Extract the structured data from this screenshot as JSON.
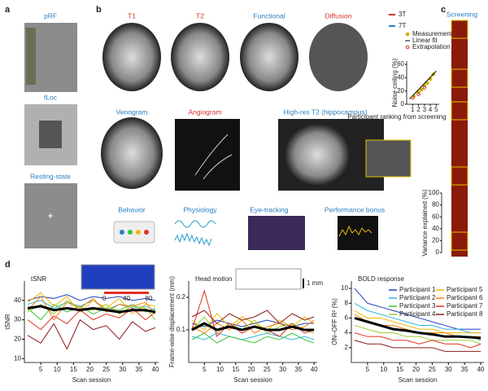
{
  "panel_labels": [
    "a",
    "b",
    "c",
    "d"
  ],
  "panel_a": {
    "titles": [
      "pRF",
      "fLoc",
      "Resting-state"
    ]
  },
  "panel_b": {
    "row1": [
      "T1",
      "T2",
      "Functional",
      "Diffusion"
    ],
    "row2": [
      "Venogram",
      "Angiogram",
      "High-res T2 (hippocampus)"
    ],
    "row3": [
      "Behavior",
      "Physiology",
      "Eye-tracking",
      "Performance bonus"
    ],
    "field_legend": [
      {
        "name": "3T",
        "color": "#d0342c"
      },
      {
        "name": "7T",
        "color": "#2a7fc0"
      }
    ]
  },
  "panel_c": {
    "title": "Screening"
  },
  "chart_data": [
    {
      "type": "scatter",
      "x_label": "Participant ranking from screening",
      "y_label": "Noise ceiling (%)",
      "xlim": [
        0,
        5.5
      ],
      "xticks": [
        1,
        2,
        3,
        4,
        5
      ],
      "ylim": [
        0,
        65
      ],
      "yticks": [
        0,
        20,
        40,
        60
      ],
      "series": [
        {
          "name": "Measurement",
          "color": "#c8b400",
          "style": "points",
          "x": [
            1.2,
            2,
            2.5,
            3,
            3.5,
            4,
            4.5
          ],
          "values": [
            12,
            18,
            22,
            28,
            32,
            38,
            45
          ]
        },
        {
          "name": "Linear fit",
          "color": "#000000",
          "style": "line",
          "x": [
            0.5,
            5
          ],
          "values": [
            8,
            50
          ]
        },
        {
          "name": "Extrapolation",
          "color": "#d0342c",
          "style": "open",
          "x": [
            1,
            2,
            3
          ],
          "values": [
            10,
            15,
            25
          ]
        }
      ]
    },
    {
      "type": "axis",
      "y_label": "Variance explained (%)",
      "ylim": [
        0,
        100
      ],
      "yticks": [
        0,
        20,
        40,
        60,
        80,
        100
      ]
    },
    {
      "type": "line",
      "title": "tSNR",
      "x_label": "Scan session",
      "y_label": "tSNR",
      "inset_ticks": [
        0,
        40,
        80
      ],
      "xlim": [
        0,
        41
      ],
      "xticks": [
        5,
        10,
        15,
        20,
        25,
        30,
        35,
        40
      ],
      "ylim": [
        8,
        50
      ],
      "yticks": [
        10,
        20,
        30,
        40
      ],
      "x": [
        1,
        5,
        9,
        13,
        17,
        21,
        25,
        29,
        33,
        37,
        40
      ],
      "series": [
        {
          "color": "#1f3fbf",
          "values": [
            40,
            42,
            41,
            43,
            40,
            42,
            41,
            42,
            40,
            41,
            40
          ]
        },
        {
          "color": "#2fb5e0",
          "values": [
            38,
            40,
            36,
            39,
            37,
            40,
            35,
            38,
            36,
            37,
            35
          ]
        },
        {
          "color": "#3cc43c",
          "values": [
            36,
            30,
            38,
            34,
            37,
            33,
            36,
            35,
            38,
            34,
            36
          ]
        },
        {
          "color": "#9acd32",
          "values": [
            34,
            38,
            33,
            40,
            36,
            35,
            38,
            33,
            37,
            36,
            30
          ]
        },
        {
          "color": "#f0b800",
          "values": [
            39,
            44,
            37,
            42,
            34,
            40,
            36,
            41,
            33,
            38,
            37
          ]
        },
        {
          "color": "#ff7f0e",
          "values": [
            35,
            42,
            30,
            39,
            36,
            41,
            34,
            38,
            37,
            39,
            33
          ]
        },
        {
          "color": "#e0301e",
          "values": [
            30,
            25,
            32,
            28,
            35,
            30,
            33,
            31,
            36,
            30,
            34
          ]
        },
        {
          "color": "#8b1a1a",
          "values": [
            22,
            18,
            28,
            15,
            30,
            25,
            27,
            20,
            29,
            24,
            26
          ]
        },
        {
          "color": "#000000",
          "width": 3,
          "values": [
            36,
            37,
            35,
            36,
            35,
            36,
            35,
            34,
            35,
            35,
            34
          ]
        }
      ]
    },
    {
      "type": "line",
      "title": "Head motion",
      "x_label": "Scan session",
      "y_label": "Frame-wise displacement (mm)",
      "inset_label": "1 mm",
      "xlim": [
        0,
        41
      ],
      "xticks": [
        5,
        10,
        15,
        20,
        25,
        30,
        35,
        40
      ],
      "ylim": [
        0,
        0.25
      ],
      "yticks": [
        0.1,
        0.2
      ],
      "x": [
        1,
        5,
        9,
        13,
        17,
        21,
        25,
        29,
        33,
        37,
        40
      ],
      "series": [
        {
          "color": "#1f3fbf",
          "values": [
            0.12,
            0.11,
            0.13,
            0.12,
            0.11,
            0.12,
            0.13,
            0.12,
            0.11,
            0.12,
            0.12
          ]
        },
        {
          "color": "#2fb5e0",
          "values": [
            0.08,
            0.07,
            0.09,
            0.08,
            0.07,
            0.08,
            0.09,
            0.08,
            0.07,
            0.08,
            0.07
          ]
        },
        {
          "color": "#3cc43c",
          "values": [
            0.07,
            0.09,
            0.06,
            0.08,
            0.07,
            0.06,
            0.08,
            0.07,
            0.09,
            0.07,
            0.06
          ]
        },
        {
          "color": "#9acd32",
          "values": [
            0.1,
            0.14,
            0.09,
            0.12,
            0.1,
            0.13,
            0.09,
            0.11,
            0.12,
            0.1,
            0.09
          ]
        },
        {
          "color": "#f0b800",
          "values": [
            0.13,
            0.1,
            0.15,
            0.11,
            0.14,
            0.12,
            0.1,
            0.13,
            0.11,
            0.14,
            0.12
          ]
        },
        {
          "color": "#ff7f0e",
          "values": [
            0.11,
            0.09,
            0.12,
            0.1,
            0.13,
            0.09,
            0.11,
            0.12,
            0.1,
            0.11,
            0.13
          ]
        },
        {
          "color": "#e0301e",
          "values": [
            0.1,
            0.22,
            0.08,
            0.12,
            0.09,
            0.11,
            0.1,
            0.08,
            0.12,
            0.09,
            0.1
          ]
        },
        {
          "color": "#8b1a1a",
          "values": [
            0.14,
            0.16,
            0.12,
            0.15,
            0.13,
            0.14,
            0.16,
            0.12,
            0.15,
            0.13,
            0.14
          ]
        },
        {
          "color": "#000000",
          "width": 3,
          "values": [
            0.1,
            0.12,
            0.1,
            0.11,
            0.1,
            0.11,
            0.1,
            0.1,
            0.11,
            0.1,
            0.1
          ]
        }
      ]
    },
    {
      "type": "line",
      "title": "BOLD response",
      "x_label": "Scan session",
      "y_label": "ON–OFF R² (%)",
      "legend": true,
      "xlim": [
        0,
        41
      ],
      "xticks": [
        5,
        10,
        15,
        20,
        25,
        30,
        35,
        40
      ],
      "ylim": [
        0,
        11
      ],
      "yticks": [
        2,
        4,
        6,
        8,
        10
      ],
      "x": [
        1,
        5,
        9,
        13,
        17,
        21,
        25,
        29,
        33,
        37,
        40
      ],
      "series": [
        {
          "name": "Participant 1",
          "color": "#1f3fbf",
          "values": [
            10,
            8,
            7.5,
            7,
            6.5,
            6,
            5.5,
            5,
            4.5,
            4.5,
            4.5
          ]
        },
        {
          "name": "Participant 2",
          "color": "#2fb5e0",
          "values": [
            8,
            7,
            6.5,
            6,
            5.5,
            5,
            5,
            4.5,
            4.5,
            4,
            4
          ]
        },
        {
          "name": "Participant 3",
          "color": "#3cc43c",
          "values": [
            6,
            5.5,
            5,
            4.5,
            4.5,
            4,
            4,
            3.5,
            3.5,
            3.5,
            3
          ]
        },
        {
          "name": "Participant 4",
          "color": "#9acd32",
          "values": [
            5,
            4.5,
            4,
            4,
            3.5,
            3.5,
            3,
            3,
            3,
            3,
            2.5
          ]
        },
        {
          "name": "Participant 5",
          "color": "#f0b800",
          "values": [
            7,
            6,
            6,
            5.5,
            5,
            4.5,
            4.5,
            4,
            4,
            4,
            4
          ]
        },
        {
          "name": "Participant 6",
          "color": "#ff7f0e",
          "values": [
            6.5,
            5.5,
            5,
            5,
            4.5,
            4,
            4,
            4,
            3.5,
            3.5,
            3.5
          ]
        },
        {
          "name": "Participant 7",
          "color": "#e0301e",
          "values": [
            4,
            3.5,
            3.5,
            3,
            3,
            2.5,
            3,
            2.5,
            2.5,
            2,
            2.5
          ]
        },
        {
          "name": "Participant 8",
          "color": "#8b1a1a",
          "values": [
            3,
            2.5,
            2.5,
            2,
            2,
            2,
            2,
            1.5,
            1.5,
            1.5,
            1.5
          ]
        },
        {
          "color": "#000000",
          "width": 3,
          "values": [
            6,
            5.5,
            5,
            4.5,
            4.3,
            4,
            3.8,
            3.5,
            3.5,
            3.4,
            3.3
          ]
        }
      ]
    }
  ]
}
